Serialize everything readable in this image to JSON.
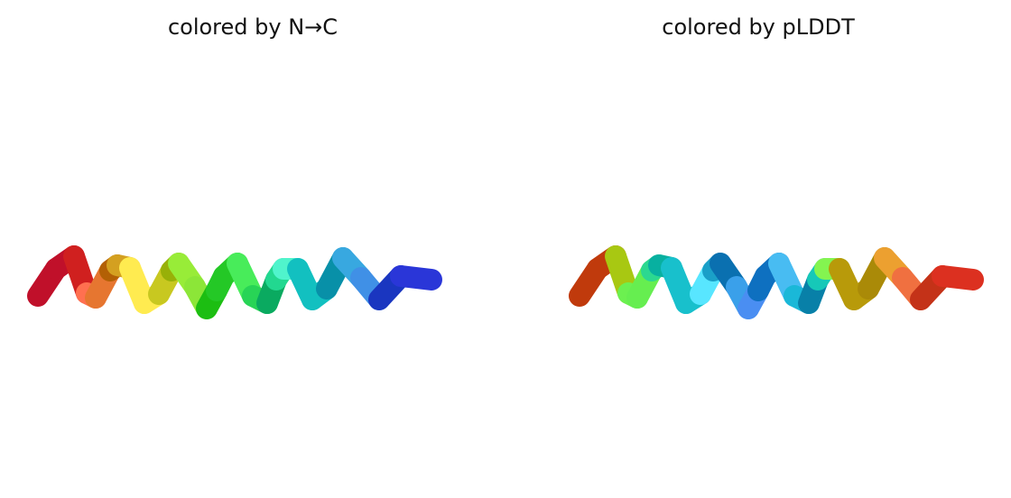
{
  "panels": [
    {
      "title": "colored by N→C",
      "segment_colors": [
        "#c0102a",
        "#d0201f",
        "#ff7050",
        "#e67630",
        "#b36005",
        "#d4a020",
        "#ffeb50",
        "#c8c820",
        "#98b008",
        "#98ec38",
        "#8ce638",
        "#1cbe12",
        "#24c826",
        "#48ec5a",
        "#28d456",
        "#0aaa60",
        "#22d890",
        "#50f4cc",
        "#12c0c0",
        "#0890a8",
        "#38a8e0",
        "#4090e6",
        "#1a36c0",
        "#2a36d8"
      ]
    },
    {
      "title": "colored by pLDDT",
      "segment_colors": [
        "#c03a0c",
        "#a8c812",
        "#6cf050",
        "#66ee50",
        "#2cd890",
        "#08b0a0",
        "#18c0cc",
        "#58e6ff",
        "#1aa0c8",
        "#0a70b0",
        "#3aa0ea",
        "#4a8ef2",
        "#0e70c0",
        "#48bcf2",
        "#1ab8d8",
        "#0880a8",
        "#16c8b8",
        "#84f450",
        "#b89a0a",
        "#aa8a08",
        "#eca030",
        "#f07040",
        "#c43218",
        "#dc3020"
      ]
    }
  ]
}
